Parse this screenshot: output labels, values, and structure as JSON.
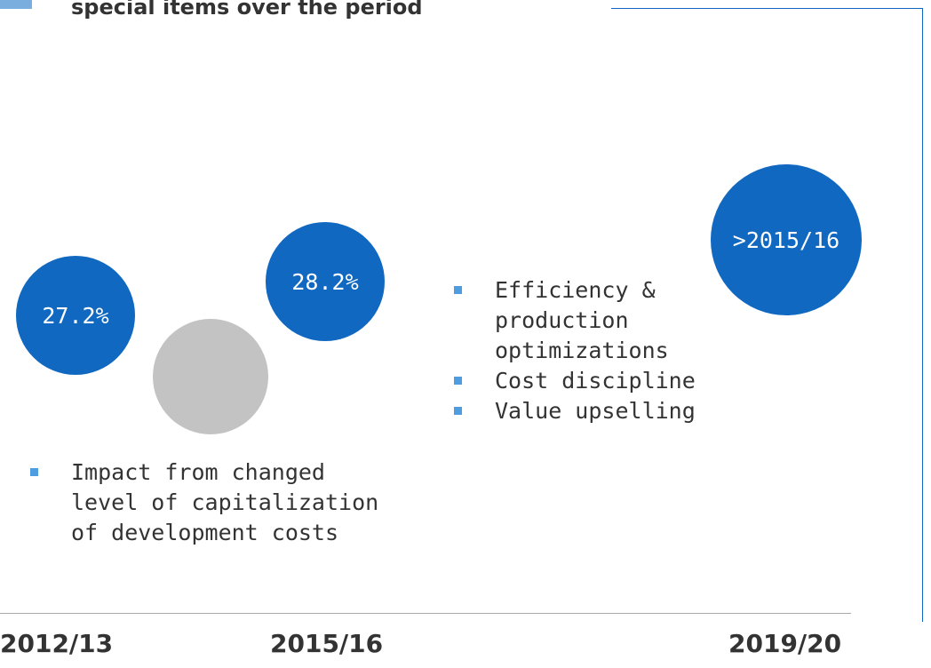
{
  "header": {
    "title": "special items over the period"
  },
  "circles": [
    {
      "label": "27.2%"
    },
    {
      "label": "28.2%"
    },
    {
      "label": ">2015/16"
    }
  ],
  "bullets_right": [
    "Efficiency & production optimizations",
    "Cost discipline",
    "Value upselling"
  ],
  "bullets_left": [
    "Impact from changed level of capitalization of development costs"
  ],
  "timeline": [
    "2012/13",
    "2015/16",
    "2019/20"
  ]
}
